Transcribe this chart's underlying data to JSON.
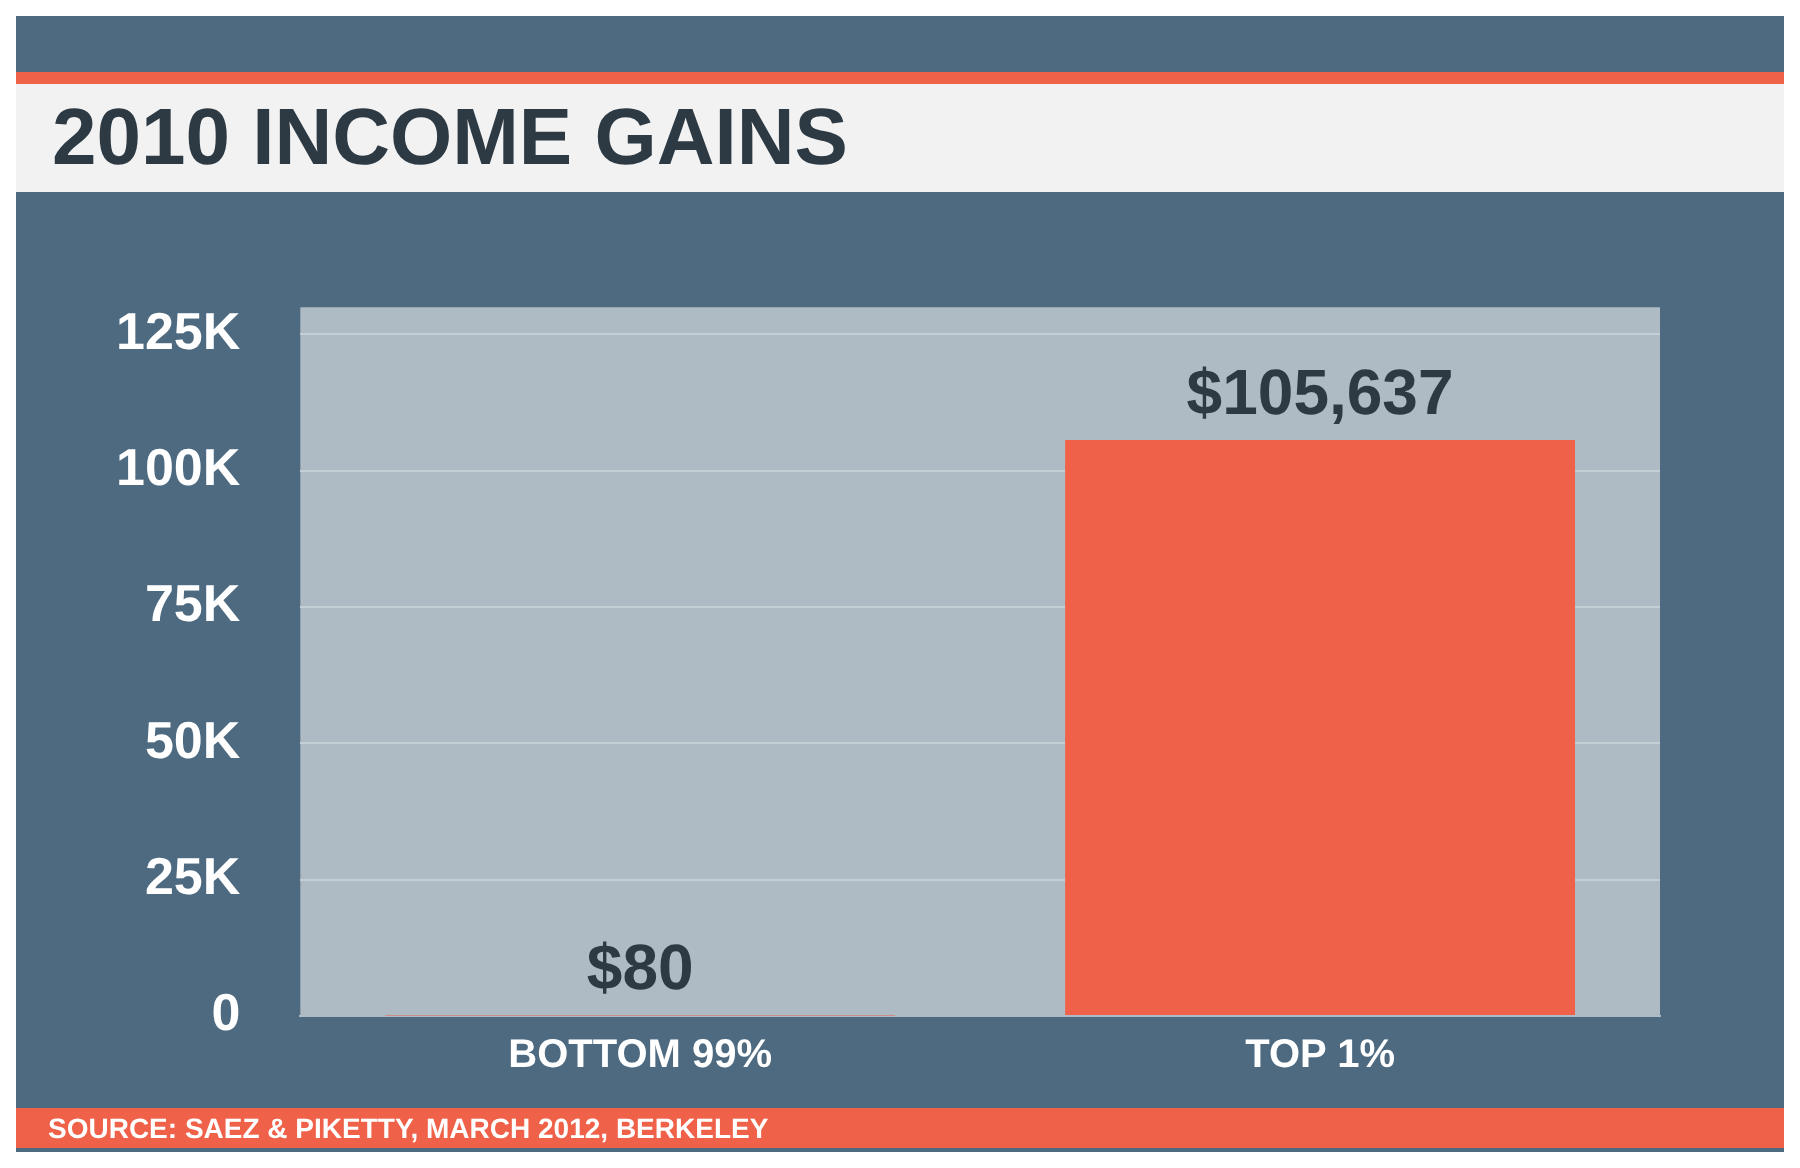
{
  "chart_data": {
    "type": "bar",
    "title": "2010 INCOME GAINS",
    "categories": [
      "BOTTOM 99%",
      "TOP 1%"
    ],
    "values": [
      80,
      105637
    ],
    "value_labels": [
      "$80",
      "$105,637"
    ],
    "color": "#ef6148",
    "ylim": [
      0,
      130000
    ],
    "yticks": [
      0,
      {
        "value": 25000,
        "label": "25K"
      },
      {
        "value": 50000,
        "label": "50K"
      },
      {
        "value": 75000,
        "label": "75K"
      },
      {
        "value": 100000,
        "label": "100K"
      },
      {
        "value": 125000,
        "label": "125K"
      }
    ],
    "grid": "y",
    "legend": false,
    "annotations": [
      "SOURCE: SAEZ & PIKETTY, MARCH 2012, BERKELEY"
    ]
  }
}
